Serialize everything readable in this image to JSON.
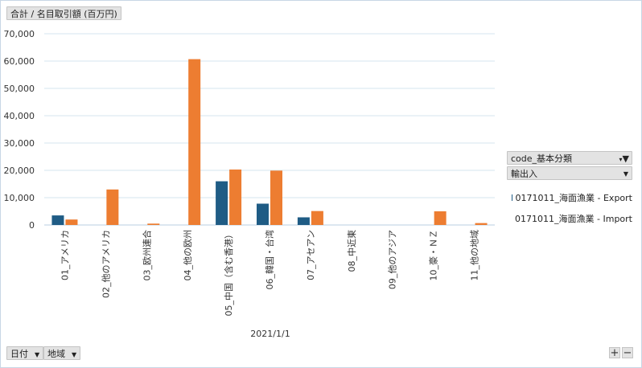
{
  "value_field": "合計 / 名目取引額 (百万円)",
  "legend": {
    "code_field": "code_基本分類",
    "io_field": "輸出入",
    "entries": [
      {
        "label": "0171011_海面漁業 - Export",
        "color": "#1f5c85"
      },
      {
        "label": "0171011_海面漁業 - Import",
        "color": "#ed7d31"
      }
    ]
  },
  "bottom_fields": {
    "date": "日付",
    "region": "地域"
  },
  "zoom": {
    "plus": "+",
    "minus": "−"
  },
  "chart_data": {
    "type": "bar",
    "categories": [
      "01_アメリカ",
      "02_他のアメリカ",
      "03_欧州連合",
      "04_他の欧州",
      "05_中国（含む香港）",
      "06_韓国・台湾",
      "07_アセアン",
      "08_中近東",
      "09_他のアジア",
      "10_豪・ＮＺ",
      "11_他の地域"
    ],
    "group_label": "2021/1/1",
    "series": [
      {
        "name": "0171011_海面漁業 - Export",
        "color": "#1f5c85",
        "values": [
          3500,
          0,
          0,
          0,
          16000,
          7800,
          2800,
          0,
          0,
          0,
          0
        ]
      },
      {
        "name": "0171011_海面漁業 - Import",
        "color": "#ed7d31",
        "values": [
          2000,
          13000,
          500,
          60700,
          20300,
          19900,
          5100,
          0,
          0,
          5000,
          700
        ]
      }
    ],
    "yticks": [
      "0",
      "10,000",
      "20,000",
      "30,000",
      "40,000",
      "50,000",
      "60,000",
      "70,000"
    ],
    "ylim": [
      0,
      70000
    ],
    "grid": true,
    "legend_position": "right"
  }
}
